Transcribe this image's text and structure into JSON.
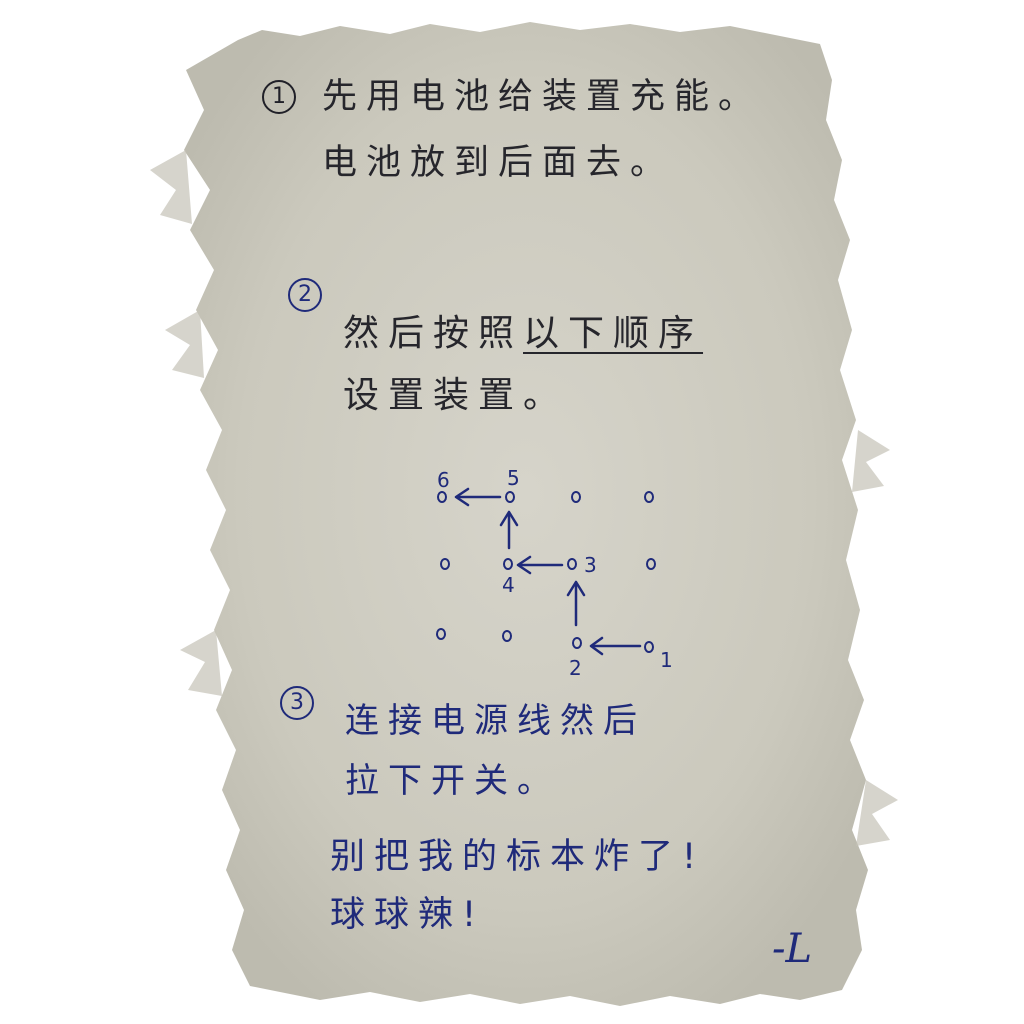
{
  "step1": {
    "number": "1",
    "line1": "先用电池给装置充能。",
    "line2": "电池放到后面去。"
  },
  "step2": {
    "number": "2",
    "line1_prefix": "然后按照",
    "line1_underlined": "以下顺序",
    "line2": "设置装置。"
  },
  "diagram": {
    "labels": [
      "1",
      "2",
      "3",
      "4",
      "5",
      "6"
    ]
  },
  "step3": {
    "number": "3",
    "line1": "连接电源线然后",
    "line2": "拉下开关。"
  },
  "warning": {
    "line1": "别把我的标本炸了!",
    "line2": "球球辣!"
  },
  "signature": "-L",
  "colors": {
    "paper": "#cdcbc0",
    "ink_blue": "#1f2a7a",
    "ink_black": "#26262c"
  }
}
